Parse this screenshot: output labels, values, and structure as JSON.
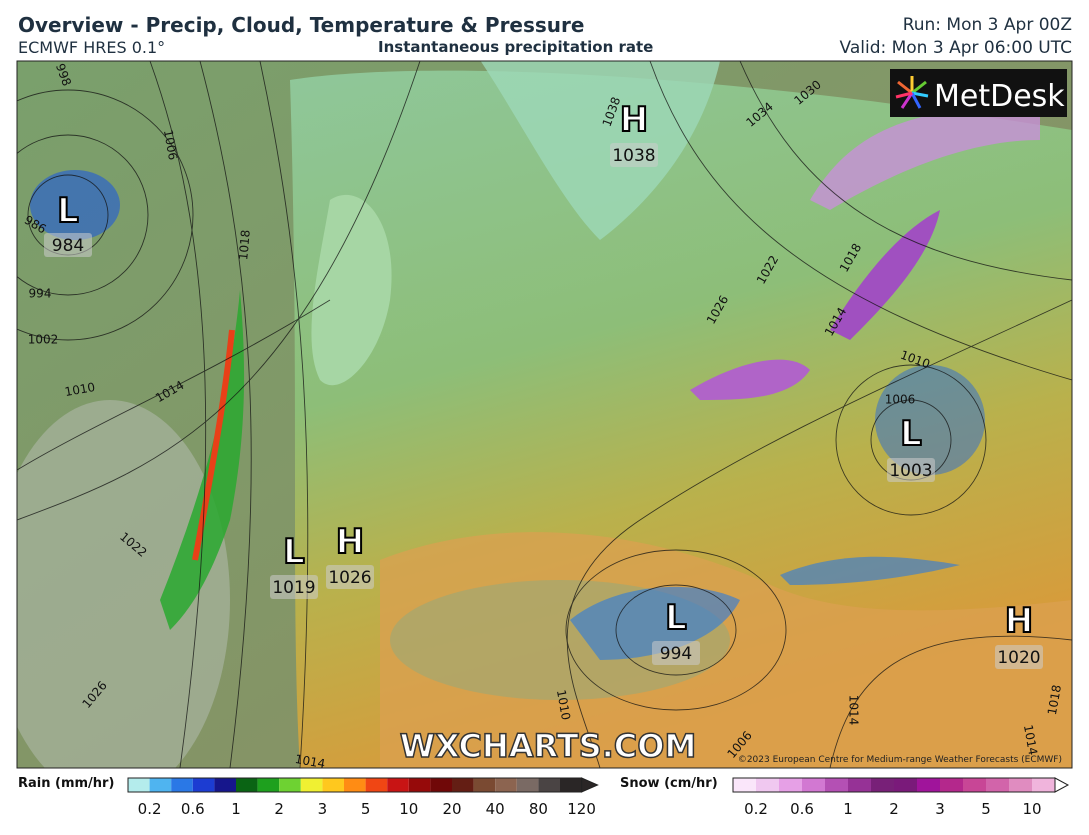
{
  "header": {
    "title": "Overview - Precip, Cloud, Temperature & Pressure",
    "model": "ECMWF HRES 0.1°",
    "subtitle": "Instantaneous precipitation rate",
    "run": "Run: Mon 3 Apr 00Z",
    "valid": "Valid: Mon 3 Apr 06:00 UTC"
  },
  "map": {
    "logo": "MetDesk",
    "watermark": "WXCHARTS.COM",
    "copyright": "©2023 European Centre for Medium-range Weather Forecasts (ECMWF)",
    "centers": [
      {
        "type": "L",
        "value": "984"
      },
      {
        "type": "H",
        "value": "1038"
      },
      {
        "type": "L",
        "value": "1003"
      },
      {
        "type": "L",
        "value": "1019"
      },
      {
        "type": "H",
        "value": "1026"
      },
      {
        "type": "L",
        "value": "994"
      },
      {
        "type": "H",
        "value": "1020"
      }
    ],
    "isobar_labels": [
      "998",
      "1006",
      "1018",
      "986",
      "994",
      "1002",
      "1010",
      "1014",
      "1022",
      "1026",
      "1038",
      "1034",
      "1030",
      "1022",
      "1026",
      "1018",
      "1014",
      "1010",
      "1006",
      "1014",
      "1018",
      "1014",
      "1006",
      "1014",
      "1010"
    ]
  },
  "legend": {
    "rain": {
      "label": "Rain (mm/hr)",
      "ticks": [
        "0.2",
        "0.6",
        "1",
        "2",
        "3",
        "5",
        "10",
        "20",
        "40",
        "80",
        "120"
      ],
      "colors": [
        "#b4ecec",
        "#4fb4f0",
        "#2a78e6",
        "#1c3cd2",
        "#16168c",
        "#0a6414",
        "#1ea01e",
        "#6ed232",
        "#f0f032",
        "#ffc81e",
        "#ff8c14",
        "#f04614",
        "#c81414",
        "#960a0a",
        "#700808",
        "#641e14",
        "#7a4a32",
        "#8c6450",
        "#7a6a64",
        "#4a4444",
        "#2a2626"
      ]
    },
    "snow": {
      "label": "Snow (cm/hr)",
      "ticks": [
        "0.2",
        "0.6",
        "1",
        "2",
        "3",
        "5",
        "10"
      ],
      "colors": [
        "#fae6fa",
        "#f0c8f0",
        "#e6a0e6",
        "#d278d2",
        "#b450b4",
        "#963296",
        "#782078",
        "#7a1a7a",
        "#a0149b",
        "#b4288c",
        "#c84696",
        "#d264aa",
        "#e08cc0",
        "#f0b4dc"
      ]
    }
  }
}
